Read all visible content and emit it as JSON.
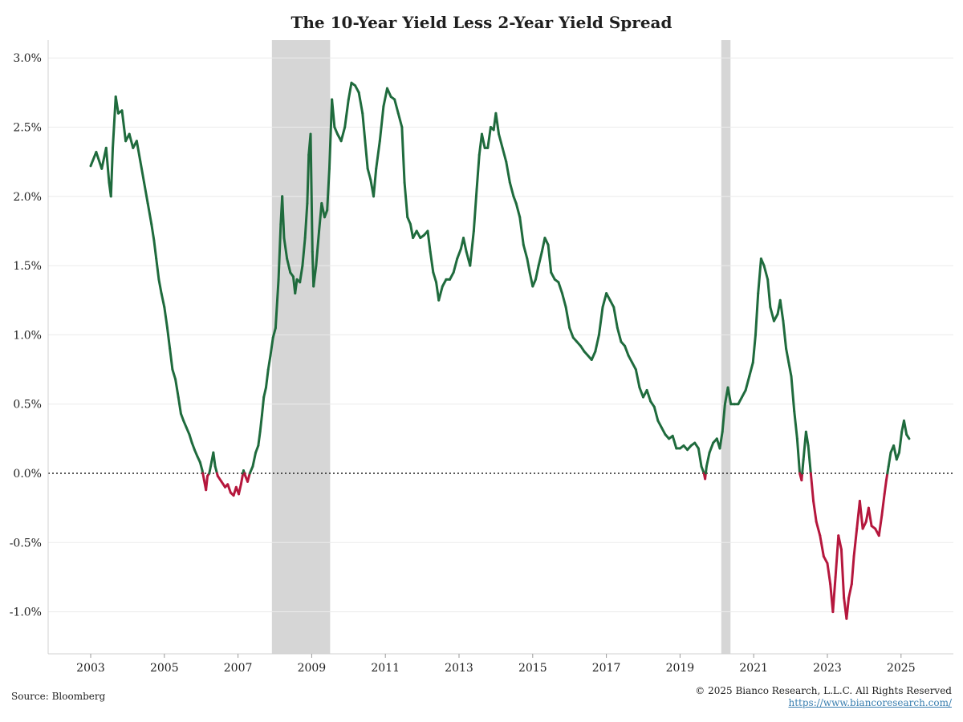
{
  "chart_data": {
    "type": "line",
    "title": "The 10-Year Yield Less 2-Year Yield Spread",
    "xlabel": "",
    "ylabel": "",
    "xlim": [
      2002.0,
      2026.3
    ],
    "ylim": [
      -1.3,
      3.1
    ],
    "y_ticks": [
      -1.0,
      -0.5,
      0.0,
      0.5,
      1.0,
      1.5,
      2.0,
      2.5,
      3.0
    ],
    "y_tick_labels": [
      "-1.0%",
      "-0.5%",
      "0.0%",
      "0.5%",
      "1.0%",
      "1.5%",
      "2.0%",
      "2.5%",
      "3.0%"
    ],
    "x_ticks": [
      2003,
      2005,
      2007,
      2009,
      2011,
      2013,
      2015,
      2017,
      2019,
      2021,
      2023,
      2025
    ],
    "x_tick_labels": [
      "2003",
      "2005",
      "2007",
      "2009",
      "2011",
      "2013",
      "2015",
      "2017",
      "2019",
      "2021",
      "2023",
      "2025"
    ],
    "grid": "horizontal",
    "zero_line": "dotted",
    "positive_color": "#1f6b3d",
    "negative_color": "#b5173d",
    "recession_color": "#d6d6d6",
    "recessions": [
      {
        "start": 2007.92,
        "end": 2009.5
      },
      {
        "start": 2020.12,
        "end": 2020.37
      }
    ],
    "series": [
      {
        "values": [
          [
            2003.0,
            2.22
          ],
          [
            2003.15,
            2.32
          ],
          [
            2003.3,
            2.2
          ],
          [
            2003.42,
            2.35
          ],
          [
            2003.5,
            2.1
          ],
          [
            2003.55,
            2.0
          ],
          [
            2003.6,
            2.35
          ],
          [
            2003.68,
            2.72
          ],
          [
            2003.75,
            2.6
          ],
          [
            2003.85,
            2.62
          ],
          [
            2003.95,
            2.4
          ],
          [
            2004.05,
            2.45
          ],
          [
            2004.15,
            2.35
          ],
          [
            2004.25,
            2.4
          ],
          [
            2004.35,
            2.25
          ],
          [
            2004.45,
            2.1
          ],
          [
            2004.55,
            1.95
          ],
          [
            2004.65,
            1.8
          ],
          [
            2004.72,
            1.68
          ],
          [
            2004.78,
            1.55
          ],
          [
            2004.85,
            1.4
          ],
          [
            2004.92,
            1.3
          ],
          [
            2005.0,
            1.2
          ],
          [
            2005.08,
            1.05
          ],
          [
            2005.15,
            0.9
          ],
          [
            2005.22,
            0.75
          ],
          [
            2005.3,
            0.68
          ],
          [
            2005.38,
            0.55
          ],
          [
            2005.45,
            0.43
          ],
          [
            2005.52,
            0.38
          ],
          [
            2005.6,
            0.33
          ],
          [
            2005.68,
            0.28
          ],
          [
            2005.75,
            0.22
          ],
          [
            2005.82,
            0.17
          ],
          [
            2005.9,
            0.12
          ],
          [
            2005.97,
            0.08
          ],
          [
            2006.03,
            0.02
          ],
          [
            2006.08,
            -0.05
          ],
          [
            2006.13,
            -0.12
          ],
          [
            2006.17,
            -0.02
          ],
          [
            2006.22,
            0.0
          ],
          [
            2006.28,
            0.08
          ],
          [
            2006.33,
            0.15
          ],
          [
            2006.38,
            0.05
          ],
          [
            2006.45,
            -0.02
          ],
          [
            2006.55,
            -0.06
          ],
          [
            2006.65,
            -0.1
          ],
          [
            2006.72,
            -0.08
          ],
          [
            2006.8,
            -0.14
          ],
          [
            2006.88,
            -0.16
          ],
          [
            2006.95,
            -0.1
          ],
          [
            2007.02,
            -0.15
          ],
          [
            2007.08,
            -0.08
          ],
          [
            2007.15,
            0.02
          ],
          [
            2007.2,
            -0.02
          ],
          [
            2007.26,
            -0.06
          ],
          [
            2007.32,
            0.0
          ],
          [
            2007.4,
            0.05
          ],
          [
            2007.48,
            0.15
          ],
          [
            2007.55,
            0.2
          ],
          [
            2007.6,
            0.3
          ],
          [
            2007.65,
            0.42
          ],
          [
            2007.7,
            0.55
          ],
          [
            2007.76,
            0.62
          ],
          [
            2007.82,
            0.75
          ],
          [
            2007.88,
            0.85
          ],
          [
            2007.95,
            0.98
          ],
          [
            2008.02,
            1.05
          ],
          [
            2008.1,
            1.4
          ],
          [
            2008.16,
            1.8
          ],
          [
            2008.2,
            2.0
          ],
          [
            2008.25,
            1.7
          ],
          [
            2008.33,
            1.55
          ],
          [
            2008.42,
            1.45
          ],
          [
            2008.5,
            1.42
          ],
          [
            2008.55,
            1.3
          ],
          [
            2008.6,
            1.4
          ],
          [
            2008.68,
            1.38
          ],
          [
            2008.75,
            1.5
          ],
          [
            2008.82,
            1.7
          ],
          [
            2008.88,
            1.95
          ],
          [
            2008.92,
            2.3
          ],
          [
            2008.97,
            2.45
          ],
          [
            2009.02,
            1.6
          ],
          [
            2009.05,
            1.35
          ],
          [
            2009.12,
            1.5
          ],
          [
            2009.2,
            1.75
          ],
          [
            2009.27,
            1.95
          ],
          [
            2009.35,
            1.85
          ],
          [
            2009.42,
            1.9
          ],
          [
            2009.48,
            2.2
          ],
          [
            2009.55,
            2.7
          ],
          [
            2009.62,
            2.5
          ],
          [
            2009.7,
            2.45
          ],
          [
            2009.8,
            2.4
          ],
          [
            2009.9,
            2.5
          ],
          [
            2010.0,
            2.7
          ],
          [
            2010.08,
            2.82
          ],
          [
            2010.18,
            2.8
          ],
          [
            2010.28,
            2.75
          ],
          [
            2010.38,
            2.6
          ],
          [
            2010.45,
            2.4
          ],
          [
            2010.52,
            2.2
          ],
          [
            2010.6,
            2.12
          ],
          [
            2010.68,
            2.0
          ],
          [
            2010.75,
            2.2
          ],
          [
            2010.85,
            2.4
          ],
          [
            2010.95,
            2.65
          ],
          [
            2011.05,
            2.78
          ],
          [
            2011.15,
            2.72
          ],
          [
            2011.25,
            2.7
          ],
          [
            2011.35,
            2.6
          ],
          [
            2011.45,
            2.5
          ],
          [
            2011.52,
            2.1
          ],
          [
            2011.6,
            1.85
          ],
          [
            2011.68,
            1.8
          ],
          [
            2011.75,
            1.7
          ],
          [
            2011.85,
            1.75
          ],
          [
            2011.95,
            1.7
          ],
          [
            2012.05,
            1.72
          ],
          [
            2012.15,
            1.75
          ],
          [
            2012.22,
            1.6
          ],
          [
            2012.3,
            1.45
          ],
          [
            2012.38,
            1.38
          ],
          [
            2012.45,
            1.25
          ],
          [
            2012.55,
            1.35
          ],
          [
            2012.65,
            1.4
          ],
          [
            2012.75,
            1.4
          ],
          [
            2012.85,
            1.45
          ],
          [
            2012.95,
            1.55
          ],
          [
            2013.05,
            1.62
          ],
          [
            2013.12,
            1.7
          ],
          [
            2013.2,
            1.6
          ],
          [
            2013.3,
            1.5
          ],
          [
            2013.4,
            1.75
          ],
          [
            2013.48,
            2.05
          ],
          [
            2013.55,
            2.3
          ],
          [
            2013.62,
            2.45
          ],
          [
            2013.7,
            2.35
          ],
          [
            2013.78,
            2.35
          ],
          [
            2013.86,
            2.5
          ],
          [
            2013.94,
            2.48
          ],
          [
            2014.0,
            2.6
          ],
          [
            2014.08,
            2.45
          ],
          [
            2014.18,
            2.35
          ],
          [
            2014.28,
            2.25
          ],
          [
            2014.38,
            2.1
          ],
          [
            2014.48,
            2.0
          ],
          [
            2014.55,
            1.95
          ],
          [
            2014.65,
            1.85
          ],
          [
            2014.75,
            1.65
          ],
          [
            2014.85,
            1.55
          ],
          [
            2014.92,
            1.45
          ],
          [
            2015.0,
            1.35
          ],
          [
            2015.08,
            1.4
          ],
          [
            2015.16,
            1.5
          ],
          [
            2015.25,
            1.6
          ],
          [
            2015.33,
            1.7
          ],
          [
            2015.42,
            1.65
          ],
          [
            2015.5,
            1.45
          ],
          [
            2015.6,
            1.4
          ],
          [
            2015.7,
            1.38
          ],
          [
            2015.8,
            1.3
          ],
          [
            2015.9,
            1.2
          ],
          [
            2016.0,
            1.05
          ],
          [
            2016.1,
            0.98
          ],
          [
            2016.2,
            0.95
          ],
          [
            2016.3,
            0.92
          ],
          [
            2016.4,
            0.88
          ],
          [
            2016.5,
            0.85
          ],
          [
            2016.6,
            0.82
          ],
          [
            2016.7,
            0.88
          ],
          [
            2016.8,
            1.0
          ],
          [
            2016.9,
            1.2
          ],
          [
            2017.0,
            1.3
          ],
          [
            2017.1,
            1.25
          ],
          [
            2017.2,
            1.2
          ],
          [
            2017.3,
            1.05
          ],
          [
            2017.4,
            0.95
          ],
          [
            2017.5,
            0.92
          ],
          [
            2017.6,
            0.85
          ],
          [
            2017.7,
            0.8
          ],
          [
            2017.8,
            0.75
          ],
          [
            2017.9,
            0.62
          ],
          [
            2018.0,
            0.55
          ],
          [
            2018.1,
            0.6
          ],
          [
            2018.2,
            0.52
          ],
          [
            2018.3,
            0.48
          ],
          [
            2018.4,
            0.38
          ],
          [
            2018.5,
            0.33
          ],
          [
            2018.6,
            0.28
          ],
          [
            2018.7,
            0.25
          ],
          [
            2018.8,
            0.27
          ],
          [
            2018.9,
            0.18
          ],
          [
            2019.0,
            0.18
          ],
          [
            2019.1,
            0.2
          ],
          [
            2019.2,
            0.17
          ],
          [
            2019.3,
            0.2
          ],
          [
            2019.4,
            0.22
          ],
          [
            2019.5,
            0.18
          ],
          [
            2019.58,
            0.05
          ],
          [
            2019.65,
            0.0
          ],
          [
            2019.68,
            -0.04
          ],
          [
            2019.72,
            0.05
          ],
          [
            2019.8,
            0.15
          ],
          [
            2019.9,
            0.22
          ],
          [
            2020.0,
            0.25
          ],
          [
            2020.08,
            0.18
          ],
          [
            2020.15,
            0.3
          ],
          [
            2020.22,
            0.5
          ],
          [
            2020.3,
            0.62
          ],
          [
            2020.38,
            0.5
          ],
          [
            2020.48,
            0.5
          ],
          [
            2020.58,
            0.5
          ],
          [
            2020.68,
            0.55
          ],
          [
            2020.78,
            0.6
          ],
          [
            2020.88,
            0.7
          ],
          [
            2020.98,
            0.8
          ],
          [
            2021.05,
            1.0
          ],
          [
            2021.12,
            1.3
          ],
          [
            2021.2,
            1.55
          ],
          [
            2021.28,
            1.5
          ],
          [
            2021.38,
            1.4
          ],
          [
            2021.45,
            1.2
          ],
          [
            2021.55,
            1.1
          ],
          [
            2021.65,
            1.15
          ],
          [
            2021.72,
            1.25
          ],
          [
            2021.8,
            1.1
          ],
          [
            2021.88,
            0.9
          ],
          [
            2021.95,
            0.8
          ],
          [
            2022.02,
            0.7
          ],
          [
            2022.1,
            0.45
          ],
          [
            2022.18,
            0.25
          ],
          [
            2022.25,
            0.0
          ],
          [
            2022.3,
            -0.05
          ],
          [
            2022.35,
            0.1
          ],
          [
            2022.42,
            0.3
          ],
          [
            2022.48,
            0.2
          ],
          [
            2022.55,
            0.0
          ],
          [
            2022.62,
            -0.2
          ],
          [
            2022.7,
            -0.35
          ],
          [
            2022.8,
            -0.45
          ],
          [
            2022.9,
            -0.6
          ],
          [
            2023.0,
            -0.65
          ],
          [
            2023.08,
            -0.8
          ],
          [
            2023.15,
            -1.0
          ],
          [
            2023.22,
            -0.75
          ],
          [
            2023.3,
            -0.45
          ],
          [
            2023.38,
            -0.55
          ],
          [
            2023.45,
            -0.9
          ],
          [
            2023.52,
            -1.05
          ],
          [
            2023.58,
            -0.9
          ],
          [
            2023.66,
            -0.8
          ],
          [
            2023.72,
            -0.6
          ],
          [
            2023.8,
            -0.4
          ],
          [
            2023.88,
            -0.2
          ],
          [
            2023.96,
            -0.4
          ],
          [
            2024.05,
            -0.35
          ],
          [
            2024.12,
            -0.25
          ],
          [
            2024.2,
            -0.38
          ],
          [
            2024.3,
            -0.4
          ],
          [
            2024.4,
            -0.45
          ],
          [
            2024.48,
            -0.3
          ],
          [
            2024.55,
            -0.15
          ],
          [
            2024.6,
            -0.05
          ],
          [
            2024.66,
            0.05
          ],
          [
            2024.72,
            0.15
          ],
          [
            2024.8,
            0.2
          ],
          [
            2024.88,
            0.1
          ],
          [
            2024.95,
            0.15
          ],
          [
            2025.02,
            0.3
          ],
          [
            2025.08,
            0.38
          ],
          [
            2025.15,
            0.28
          ],
          [
            2025.22,
            0.25
          ]
        ]
      }
    ]
  },
  "footer": {
    "source": "Source: Bloomberg",
    "copyright": "© 2025 Bianco Research, L.L.C. All Rights Reserved",
    "url": "https://www.biancoresearch.com/"
  }
}
